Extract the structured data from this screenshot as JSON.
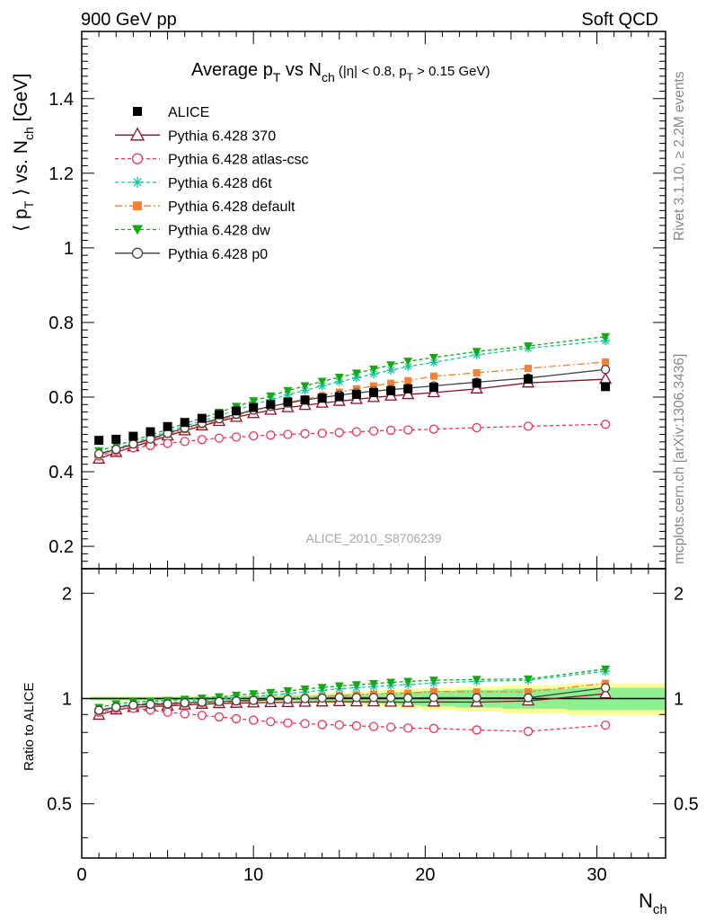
{
  "header": {
    "left": "900 GeV pp",
    "right": "Soft QCD"
  },
  "side_labels": {
    "rivet": "Rivet 3.1.10, ≥ 2.2M events",
    "mcplots": "mcplots.cern.ch [arXiv:1306.3436]"
  },
  "watermark": "ALICE_2010_S8706239",
  "ratio_ylabel": "Ratio to ALICE",
  "chart_data": {
    "type": "line",
    "title": {
      "main": "Average p",
      "sub1": "T",
      "mid": " vs N",
      "sub2": "ch",
      "cut1": " (|η| < 0.8, p",
      "sub3": "T",
      "cut2": " > 0.15 GeV)"
    },
    "ylabel": {
      "a": "⟨ p",
      "sub1": "T",
      "b": " ⟩ vs. N",
      "sub2": "ch",
      "c": " [GeV]"
    },
    "xlabel": {
      "a": "N",
      "sub": "ch"
    },
    "xlim": [
      0,
      34
    ],
    "ylim": [
      0.14,
      1.58
    ],
    "ratio_ylim": [
      0.35,
      2.35
    ],
    "xticks": [
      "0",
      "10",
      "20",
      "30"
    ],
    "yticks": [
      "0.2",
      "0.4",
      "0.6",
      "0.8",
      "1",
      "1.2",
      "1.4"
    ],
    "ratio_yticks": [
      "0.5",
      "1",
      "2"
    ],
    "data": {
      "name": "ALICE",
      "x": [
        1,
        2,
        3,
        4,
        5,
        6,
        7,
        8,
        9,
        10,
        11,
        12,
        13,
        14,
        15,
        16,
        17,
        18,
        19,
        20.5,
        23,
        26,
        30.5
      ],
      "y": [
        0.484,
        0.487,
        0.495,
        0.507,
        0.521,
        0.532,
        0.543,
        0.553,
        0.563,
        0.572,
        0.58,
        0.587,
        0.592,
        0.597,
        0.601,
        0.607,
        0.612,
        0.617,
        0.622,
        0.626,
        0.637,
        0.648,
        0.628
      ]
    },
    "series": [
      {
        "name": "Pythia 6.428 370",
        "color": "#8b0f2b",
        "dash": "",
        "marker": "triangle-open",
        "y": [
          0.434,
          0.452,
          0.467,
          0.481,
          0.496,
          0.51,
          0.523,
          0.535,
          0.546,
          0.556,
          0.565,
          0.572,
          0.578,
          0.584,
          0.589,
          0.594,
          0.599,
          0.603,
          0.607,
          0.612,
          0.622,
          0.638,
          0.648
        ]
      },
      {
        "name": "Pythia 6.428 atlas-csc",
        "color": "#e8365a",
        "dash": "4,3",
        "marker": "circle-open",
        "y": [
          0.442,
          0.456,
          0.464,
          0.47,
          0.476,
          0.481,
          0.486,
          0.49,
          0.493,
          0.496,
          0.498,
          0.5,
          0.502,
          0.503,
          0.505,
          0.507,
          0.509,
          0.511,
          0.512,
          0.514,
          0.518,
          0.522,
          0.527
        ]
      },
      {
        "name": "Pythia 6.428 d6t",
        "color": "#13c4a0",
        "dash": "4,3",
        "marker": "asterisk",
        "y": [
          0.448,
          0.462,
          0.477,
          0.492,
          0.507,
          0.522,
          0.536,
          0.55,
          0.565,
          0.58,
          0.593,
          0.606,
          0.618,
          0.63,
          0.641,
          0.652,
          0.662,
          0.672,
          0.682,
          0.693,
          0.713,
          0.731,
          0.751
        ]
      },
      {
        "name": "Pythia 6.428 default",
        "color": "#f58232",
        "dash": "8,3,2,3",
        "marker": "square",
        "y": [
          0.444,
          0.458,
          0.472,
          0.486,
          0.5,
          0.513,
          0.526,
          0.539,
          0.551,
          0.563,
          0.574,
          0.585,
          0.595,
          0.604,
          0.613,
          0.622,
          0.63,
          0.637,
          0.644,
          0.656,
          0.665,
          0.677,
          0.694
        ]
      },
      {
        "name": "Pythia 6.428 dw",
        "color": "#14a814",
        "dash": "4,3",
        "marker": "triangle-down",
        "y": [
          0.456,
          0.47,
          0.484,
          0.498,
          0.514,
          0.529,
          0.544,
          0.559,
          0.575,
          0.59,
          0.603,
          0.617,
          0.63,
          0.642,
          0.653,
          0.664,
          0.675,
          0.686,
          0.696,
          0.706,
          0.722,
          0.737,
          0.762
        ]
      },
      {
        "name": "Pythia 6.428 p0",
        "color": "#404040",
        "dash": "",
        "marker": "circle-open",
        "y": [
          0.448,
          0.46,
          0.474,
          0.488,
          0.503,
          0.517,
          0.53,
          0.542,
          0.554,
          0.565,
          0.575,
          0.584,
          0.592,
          0.599,
          0.605,
          0.611,
          0.616,
          0.62,
          0.624,
          0.63,
          0.64,
          0.651,
          0.674
        ]
      }
    ]
  }
}
